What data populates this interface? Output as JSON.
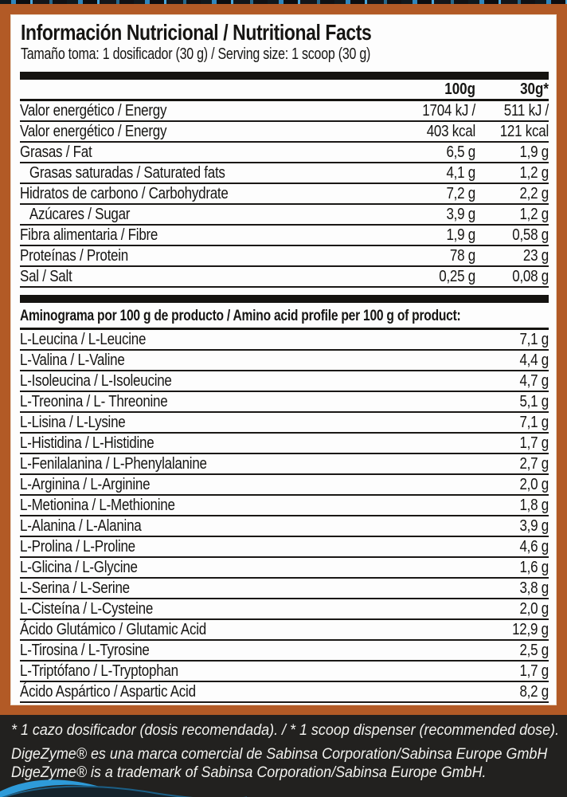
{
  "label": {
    "title": "Información Nutricional / Nutritional Facts",
    "serving": "Tamaño toma: 1 dosificador (30 g) / Serving size: 1 scoop (30 g)",
    "columns": [
      "100g",
      "30g*"
    ],
    "nutrition_rows": [
      {
        "label": "Valor energético / Energy",
        "indent": false,
        "per_100g": "1704 kJ /",
        "per_30g": "511 kJ /"
      },
      {
        "label": "Valor energético / Energy",
        "indent": false,
        "per_100g": "403 kcal",
        "per_30g": "121 kcal"
      },
      {
        "label": "Grasas / Fat",
        "indent": false,
        "per_100g": "6,5 g",
        "per_30g": "1,9 g"
      },
      {
        "label": "Grasas saturadas / Saturated fats",
        "indent": true,
        "per_100g": "4,1 g",
        "per_30g": "1,2 g"
      },
      {
        "label": "Hidratos de carbono / Carbohydrate",
        "indent": false,
        "per_100g": "7,2 g",
        "per_30g": "2,2 g"
      },
      {
        "label": "Azúcares / Sugar",
        "indent": true,
        "per_100g": "3,9 g",
        "per_30g": "1,2 g"
      },
      {
        "label": "Fibra alimentaria / Fibre",
        "indent": false,
        "per_100g": "1,9 g",
        "per_30g": "0,58 g"
      },
      {
        "label": "Proteínas / Protein",
        "indent": false,
        "per_100g": "78 g",
        "per_30g": "23 g"
      },
      {
        "label": "Sal / Salt",
        "indent": false,
        "per_100g": "0,25 g",
        "per_30g": "0,08 g"
      }
    ],
    "amino_header": "Aminograma por 100 g de producto / Amino acid profile per 100 g of product:",
    "amino_rows": [
      {
        "label": "L-Leucina / L-Leucine",
        "value": "7,1 g"
      },
      {
        "label": "L-Valina / L-Valine",
        "value": "4,4 g"
      },
      {
        "label": "L-Isoleucina / L-Isoleucine",
        "value": "4,7 g"
      },
      {
        "label": "L-Treonina / L- Threonine",
        "value": "5,1 g"
      },
      {
        "label": "L-Lisina / L-Lysine",
        "value": "7,1 g"
      },
      {
        "label": "L-Histidina / L-Histidine",
        "value": "1,7 g"
      },
      {
        "label": "L-Fenilalanina / L-Phenylalanine",
        "value": "2,7 g"
      },
      {
        "label": "L-Arginina / L-Arginine",
        "value": "2,0 g"
      },
      {
        "label": "L-Metionina / L-Methionine",
        "value": "1,8 g"
      },
      {
        "label": "L-Alanina / L-Alanina",
        "value": "3,9 g"
      },
      {
        "label": "L-Prolina / L-Proline",
        "value": "4,6 g"
      },
      {
        "label": "L-Glicina / L-Glycine",
        "value": "1,6 g"
      },
      {
        "label": "L-Serina / L-Serine",
        "value": "3,8 g"
      },
      {
        "label": "L-Cisteína / L-Cysteine",
        "value": "2,0 g"
      },
      {
        "label": "Ácido Glutámico / Glutamic Acid",
        "value": "12,9 g"
      },
      {
        "label": "L-Tirosina / L-Tyrosine",
        "value": "2,5 g"
      },
      {
        "label": "L-Triptófano / L-Tryptophan",
        "value": "1,7 g"
      },
      {
        "label": "Ácido Aspártico / Aspartic Acid",
        "value": "8,2 g"
      }
    ],
    "footnotes": [
      "* 1 cazo dosificador (dosis recomendada). / * 1 scoop dispenser (recommended dose).",
      "DigeZyme® es una marca comercial de Sabinsa Corporation/Sabinsa Europe GmbH",
      "DigeZyme® is a trademark of Sabinsa Corporation/Sabinsa Europe GmbH."
    ],
    "colors": {
      "frame_orange": "#b25a26",
      "panel_white": "#fdfdfd",
      "text_black": "#161513",
      "footer_background": "#22211f",
      "footer_text": "#f2f2ef",
      "swoosh_blue": "#2e9bd9"
    }
  }
}
